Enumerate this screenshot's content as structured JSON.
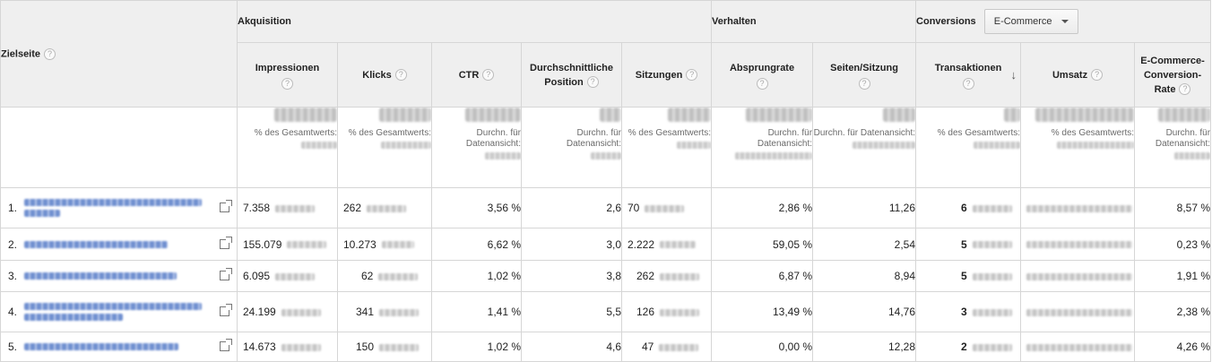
{
  "header": {
    "page_column": "Zielseite",
    "groups": {
      "acquisition": "Akquisition",
      "behavior": "Verhalten",
      "conversions": "Conversions",
      "conversions_select": "E-Commerce"
    },
    "columns": {
      "impressions": "Impressionen",
      "clicks": "Klicks",
      "ctr": "CTR",
      "avg_position": "Durchschnittliche Position",
      "sessions": "Sitzungen",
      "bounce_rate": "Absprungrate",
      "pages_per_session": "Seiten/Sitzung",
      "transactions": "Transaktionen",
      "revenue": "Umsatz",
      "ecommerce_conversion_rate": "E-Commerce-Conversion-Rate"
    },
    "help_glyph": "?",
    "sort_glyph": "↓"
  },
  "summary_labels": {
    "impressions": "% des Gesamtwerts:",
    "clicks": "% des Gesamtwerts:",
    "ctr": "Durchn. für Datenansicht:",
    "avg_position": "Durchn. für Datenansicht:",
    "sessions": "% des Gesamtwerts:",
    "bounce_rate": "Durchn. für Datenansicht:",
    "pages_per_session": "Durchn. für Datenansicht:",
    "transactions": "% des Gesamtwerts:",
    "revenue": "% des Gesamtwerts:",
    "ecommerce_conversion_rate": "Durchn. für Datenansicht:"
  },
  "rows": [
    {
      "index": "1.",
      "impressions": "7.358",
      "clicks": "262",
      "ctr": "3,56 %",
      "avg_position": "2,6",
      "sessions": "70",
      "bounce_rate": "2,86 %",
      "pages_per_session": "11,26",
      "transactions": "6",
      "ecommerce_conversion_rate": "8,57 %"
    },
    {
      "index": "2.",
      "impressions": "155.079",
      "clicks": "10.273",
      "ctr": "6,62 %",
      "avg_position": "3,0",
      "sessions": "2.222",
      "bounce_rate": "59,05 %",
      "pages_per_session": "2,54",
      "transactions": "5",
      "ecommerce_conversion_rate": "0,23 %"
    },
    {
      "index": "3.",
      "impressions": "6.095",
      "clicks": "62",
      "ctr": "1,02 %",
      "avg_position": "3,8",
      "sessions": "262",
      "bounce_rate": "6,87 %",
      "pages_per_session": "8,94",
      "transactions": "5",
      "ecommerce_conversion_rate": "1,91 %"
    },
    {
      "index": "4.",
      "impressions": "24.199",
      "clicks": "341",
      "ctr": "1,41 %",
      "avg_position": "5,5",
      "sessions": "126",
      "bounce_rate": "13,49 %",
      "pages_per_session": "14,76",
      "transactions": "3",
      "ecommerce_conversion_rate": "2,38 %"
    },
    {
      "index": "5.",
      "impressions": "14.673",
      "clicks": "150",
      "ctr": "1,02 %",
      "avg_position": "4,6",
      "sessions": "47",
      "bounce_rate": "0,00 %",
      "pages_per_session": "12,28",
      "transactions": "2",
      "ecommerce_conversion_rate": "4,26 %"
    }
  ],
  "icons": {
    "help": "question-mark-icon",
    "external_link": "open-in-new-window-icon",
    "sort": "sort-descending-arrow-icon",
    "dropdown": "caret-down-icon"
  },
  "colors": {
    "header_bg": "#efefef",
    "border": "#d6d6d6",
    "link": "#3366cc",
    "sub_text": "#6b6b6b"
  }
}
